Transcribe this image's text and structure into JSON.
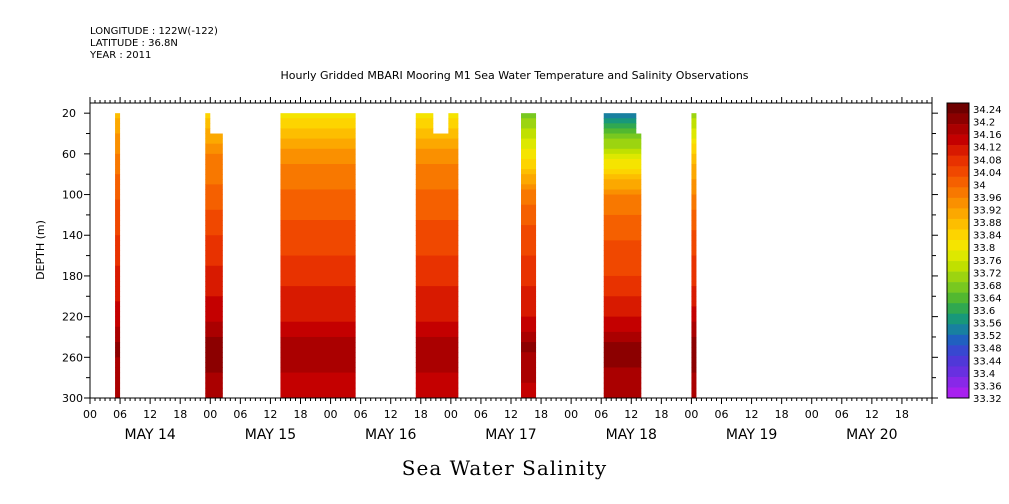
{
  "header": {
    "longitude": "LONGITUDE : 122W(-122)",
    "latitude": "LATITUDE : 36.8N",
    "year": "YEAR : 2011"
  },
  "footer_title": "Sea Water Salinity",
  "chart_data": {
    "type": "heatmap",
    "title": "Hourly Gridded MBARI Mooring M1 Sea Water Temperature and Salinity Observations",
    "xlabel": "",
    "ylabel": "DEPTH (m)",
    "y_axis": {
      "range": [
        300,
        10
      ],
      "ticks": [
        20,
        60,
        100,
        140,
        180,
        220,
        260,
        300
      ]
    },
    "x_axis": {
      "range_hours": [
        0,
        168
      ],
      "hour_tick_labels": [
        "00",
        "06",
        "12",
        "18",
        "00",
        "06",
        "12",
        "18",
        "00",
        "06",
        "12",
        "18",
        "00",
        "06",
        "12",
        "18",
        "00",
        "06",
        "12",
        "18",
        "00",
        "06",
        "12",
        "18",
        "00",
        "06",
        "12",
        "18"
      ],
      "day_labels": [
        "MAY 14",
        "MAY 15",
        "MAY 16",
        "MAY 17",
        "MAY 18",
        "MAY 19",
        "MAY 20"
      ]
    },
    "colorbar": {
      "levels": [
        34.24,
        34.2,
        34.16,
        34.12,
        34.08,
        34.04,
        34,
        33.96,
        33.92,
        33.88,
        33.84,
        33.8,
        33.76,
        33.72,
        33.68,
        33.64,
        33.6,
        33.56,
        33.52,
        33.48,
        33.44,
        33.4,
        33.36,
        33.32
      ],
      "colors": [
        "#6e0000",
        "#8c0000",
        "#aa0000",
        "#c40000",
        "#d81a00",
        "#e83200",
        "#f04800",
        "#f56000",
        "#f87800",
        "#fa9000",
        "#fca800",
        "#fdbe00",
        "#fdd400",
        "#f5e400",
        "#dde800",
        "#c0e000",
        "#9cd410",
        "#78c820",
        "#52b830",
        "#30a850",
        "#18987a",
        "#1880a0",
        "#2060c0",
        "#3848d0",
        "#5038d8",
        "#6830e0",
        "#8828e8",
        "#a820ef"
      ],
      "min": 33.32,
      "max": 34.26
    },
    "segments": [
      {
        "x_start": 5,
        "x_end": 6,
        "top_depth": 20,
        "profile": [
          [
            20,
            33.88
          ],
          [
            60,
            33.96
          ],
          [
            100,
            34.02
          ],
          [
            140,
            34.06
          ],
          [
            180,
            34.1
          ],
          [
            220,
            34.14
          ],
          [
            250,
            34.2
          ],
          [
            300,
            34.16
          ]
        ]
      },
      {
        "x_start": 23,
        "x_end": 26.5,
        "top_depth": 20,
        "notch": {
          "x_start": 24,
          "x_end": 26.5,
          "depth": 40
        },
        "profile": [
          [
            20,
            33.84
          ],
          [
            60,
            33.96
          ],
          [
            100,
            34.0
          ],
          [
            140,
            34.06
          ],
          [
            180,
            34.1
          ],
          [
            220,
            34.15
          ],
          [
            250,
            34.22
          ],
          [
            300,
            34.16
          ]
        ]
      },
      {
        "x_start": 38,
        "x_end": 53,
        "top_depth": 20,
        "profile": [
          [
            20,
            33.8
          ],
          [
            60,
            33.94
          ],
          [
            100,
            34.0
          ],
          [
            140,
            34.04
          ],
          [
            180,
            34.08
          ],
          [
            220,
            34.12
          ],
          [
            250,
            34.18
          ],
          [
            300,
            34.14
          ]
        ]
      },
      {
        "x_start": 65,
        "x_end": 73.5,
        "top_depth": 20,
        "notch": {
          "x_start": 68.5,
          "x_end": 71.5,
          "depth": 40
        },
        "profile": [
          [
            20,
            33.8
          ],
          [
            60,
            33.94
          ],
          [
            100,
            34.0
          ],
          [
            140,
            34.04
          ],
          [
            180,
            34.08
          ],
          [
            220,
            34.12
          ],
          [
            250,
            34.18
          ],
          [
            300,
            34.14
          ]
        ]
      },
      {
        "x_start": 86,
        "x_end": 89,
        "top_depth": 20,
        "profile": [
          [
            20,
            33.68
          ],
          [
            60,
            33.8
          ],
          [
            100,
            33.98
          ],
          [
            140,
            34.04
          ],
          [
            180,
            34.08
          ],
          [
            220,
            34.12
          ],
          [
            250,
            34.2
          ],
          [
            300,
            34.14
          ]
        ]
      },
      {
        "x_start": 102.5,
        "x_end": 110,
        "top_depth": 20,
        "notch": {
          "x_start": 109,
          "x_end": 110,
          "depth": 40
        },
        "profile": [
          [
            20,
            33.54
          ],
          [
            60,
            33.76
          ],
          [
            100,
            33.96
          ],
          [
            140,
            34.02
          ],
          [
            180,
            34.06
          ],
          [
            220,
            34.12
          ],
          [
            250,
            34.2
          ],
          [
            300,
            34.18
          ]
        ]
      },
      {
        "x_start": 120,
        "x_end": 121,
        "top_depth": 20,
        "profile": [
          [
            20,
            33.7
          ],
          [
            60,
            33.86
          ],
          [
            100,
            33.96
          ],
          [
            140,
            34.04
          ],
          [
            180,
            34.08
          ],
          [
            220,
            34.14
          ],
          [
            250,
            34.22
          ],
          [
            300,
            34.16
          ]
        ]
      }
    ]
  }
}
